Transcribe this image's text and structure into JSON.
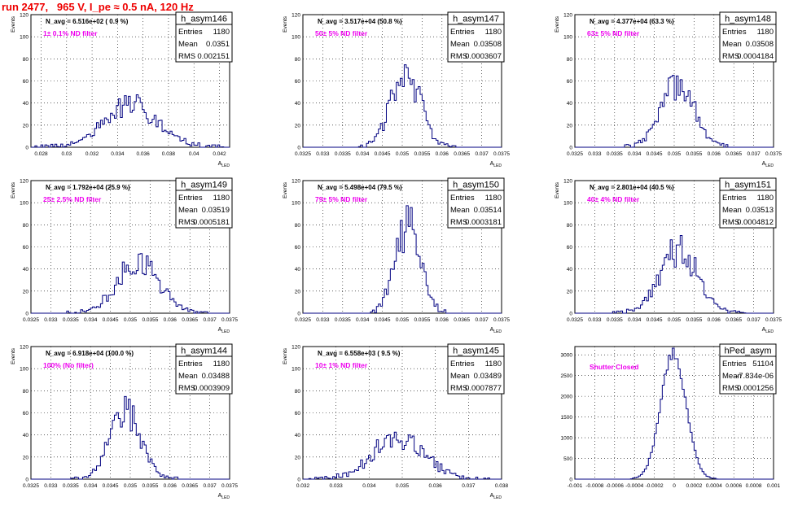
{
  "run_title": "run 2477,   965 V, I_pe ≈ 0.5 nA, 120 Hz",
  "colors": {
    "line": "#000080",
    "title": "#ee0000",
    "label": "#ee00ee",
    "frame": "#000000",
    "grid": "#000000"
  },
  "chart_data": [
    {
      "type": "bar",
      "name": "h_asym146",
      "ylabel": "Events",
      "xlabel": "A_{LED}",
      "xlim": [
        0.0272,
        0.0428
      ],
      "ylim": [
        0,
        120
      ],
      "xticks": [
        "0.028",
        "0.03",
        "0.032",
        "0.034",
        "0.036",
        "0.038",
        "0.04",
        "0.042"
      ],
      "xtick_values": [
        0.028,
        0.03,
        0.032,
        0.034,
        0.036,
        0.038,
        0.04,
        0.042
      ],
      "yticks": [
        0,
        20,
        40,
        60,
        80,
        100,
        120
      ],
      "header": "N_avg = 6.516e+02 ( 0.9 %)",
      "filter_label": "1± 0.1% ND filter",
      "stats": {
        "entries": "1180",
        "mean": "0.0351",
        "rms": "0.002151"
      },
      "mean": 0.0351,
      "sigma": 0.002151,
      "peak": 38
    },
    {
      "type": "bar",
      "name": "h_asym147",
      "ylabel": "Events",
      "xlabel": "A_{LED}",
      "xlim": [
        0.0325,
        0.0375
      ],
      "ylim": [
        0,
        120
      ],
      "xticks": [
        "0.0325",
        "0.033",
        "0.0335",
        "0.034",
        "0.0345",
        "0.035",
        "0.0355",
        "0.036",
        "0.0365",
        "0.037",
        "0.0375"
      ],
      "xtick_values": [
        0.0325,
        0.033,
        0.0335,
        0.034,
        0.0345,
        0.035,
        0.0355,
        0.036,
        0.0365,
        0.037,
        0.0375
      ],
      "yticks": [
        0,
        20,
        40,
        60,
        80,
        100,
        120
      ],
      "header": "N_avg = 3.517e+04 (50.8 %)",
      "filter_label": "50± 5% ND filter",
      "stats": {
        "entries": "1180",
        "mean": "0.03508",
        "rms": "0.0003607"
      },
      "mean": 0.03508,
      "sigma": 0.0003607,
      "peak": 72
    },
    {
      "type": "bar",
      "name": "h_asym148",
      "ylabel": "Events",
      "xlabel": "A_{LED}",
      "xlim": [
        0.0325,
        0.0375
      ],
      "ylim": [
        0,
        120
      ],
      "xticks": [
        "0.0325",
        "0.033",
        "0.0335",
        "0.034",
        "0.0345",
        "0.035",
        "0.0355",
        "0.036",
        "0.0365",
        "0.037",
        "0.0375"
      ],
      "xtick_values": [
        0.0325,
        0.033,
        0.0335,
        0.034,
        0.0345,
        0.035,
        0.0355,
        0.036,
        0.0365,
        0.037,
        0.0375
      ],
      "yticks": [
        0,
        20,
        40,
        60,
        80,
        100,
        120
      ],
      "header": "N_avg = 4.377e+04 (63.3 %)",
      "filter_label": "63± 5% ND filter",
      "stats": {
        "entries": "1180",
        "mean": "0.03508",
        "rms": "0.0004184"
      },
      "mean": 0.03508,
      "sigma": 0.0004184,
      "peak": 55
    },
    {
      "type": "bar",
      "name": "h_asym149",
      "ylabel": "Events",
      "xlabel": "A_{LED}",
      "xlim": [
        0.0325,
        0.0375
      ],
      "ylim": [
        0,
        120
      ],
      "xticks": [
        "0.0325",
        "0.033",
        "0.0335",
        "0.034",
        "0.0345",
        "0.035",
        "0.0355",
        "0.036",
        "0.0365",
        "0.037",
        "0.0375"
      ],
      "xtick_values": [
        0.0325,
        0.033,
        0.0335,
        0.034,
        0.0345,
        0.035,
        0.0355,
        0.036,
        0.0365,
        0.037,
        0.0375
      ],
      "yticks": [
        0,
        20,
        40,
        60,
        80,
        100,
        120
      ],
      "header": "N_avg = 1.792e+04 (25.9 %)",
      "filter_label": "25± 2.5% ND filter",
      "stats": {
        "entries": "1180",
        "mean": "0.03519",
        "rms": "0.0005181"
      },
      "mean": 0.03519,
      "sigma": 0.0005181,
      "peak": 46
    },
    {
      "type": "bar",
      "name": "h_asym150",
      "ylabel": "Events",
      "xlabel": "A_{LED}",
      "xlim": [
        0.0325,
        0.0375
      ],
      "ylim": [
        0,
        120
      ],
      "xticks": [
        "0.0325",
        "0.033",
        "0.0335",
        "0.034",
        "0.0345",
        "0.035",
        "0.0355",
        "0.036",
        "0.0365",
        "0.037",
        "0.0375"
      ],
      "xtick_values": [
        0.0325,
        0.033,
        0.0335,
        0.034,
        0.0345,
        0.035,
        0.0355,
        0.036,
        0.0365,
        0.037,
        0.0375
      ],
      "yticks": [
        0,
        20,
        40,
        60,
        80,
        100,
        120
      ],
      "header": "N_avg = 5.498e+04 (79.5 %)",
      "filter_label": "79± 5% ND filter",
      "stats": {
        "entries": "1180",
        "mean": "0.03514",
        "rms": "0.0003181"
      },
      "mean": 0.03514,
      "sigma": 0.0003181,
      "peak": 78
    },
    {
      "type": "bar",
      "name": "h_asym151",
      "ylabel": "Events",
      "xlabel": "A_{LED}",
      "xlim": [
        0.0325,
        0.0375
      ],
      "ylim": [
        0,
        120
      ],
      "xticks": [
        "0.0325",
        "0.033",
        "0.0335",
        "0.034",
        "0.0345",
        "0.035",
        "0.0355",
        "0.036",
        "0.0365",
        "0.037",
        "0.0375"
      ],
      "xtick_values": [
        0.0325,
        0.033,
        0.0335,
        0.034,
        0.0345,
        0.035,
        0.0355,
        0.036,
        0.0365,
        0.037,
        0.0375
      ],
      "yticks": [
        0,
        20,
        40,
        60,
        80,
        100,
        120
      ],
      "header": "N_avg = 2.801e+04 (40.5 %)",
      "filter_label": "40± 4% ND filter",
      "stats": {
        "entries": "1180",
        "mean": "0.03513",
        "rms": "0.0004812"
      },
      "mean": 0.03513,
      "sigma": 0.0004812,
      "peak": 56
    },
    {
      "type": "bar",
      "name": "h_asym144",
      "ylabel": "Events",
      "xlabel": "A_{LED}",
      "xlim": [
        0.0325,
        0.0375
      ],
      "ylim": [
        0,
        120
      ],
      "xticks": [
        "0.0325",
        "0.033",
        "0.0335",
        "0.034",
        "0.0345",
        "0.035",
        "0.0355",
        "0.036",
        "0.0365",
        "0.037",
        "0.0375"
      ],
      "xtick_values": [
        0.0325,
        0.033,
        0.0335,
        0.034,
        0.0345,
        0.035,
        0.0355,
        0.036,
        0.0365,
        0.037,
        0.0375
      ],
      "yticks": [
        0,
        20,
        40,
        60,
        80,
        100,
        120
      ],
      "header": "N_avg = 6.918e+04 (100.0 %)",
      "filter_label": "100% (No filter)",
      "stats": {
        "entries": "1180",
        "mean": "0.03488",
        "rms": "0.0003909"
      },
      "mean": 0.03488,
      "sigma": 0.0003909,
      "peak": 60
    },
    {
      "type": "bar",
      "name": "h_asym145",
      "ylabel": "Events",
      "xlabel": "A_{LED}",
      "xlim": [
        0.032,
        0.038
      ],
      "ylim": [
        0,
        120
      ],
      "xticks": [
        "0.032",
        "0.033",
        "0.034",
        "0.035",
        "0.036",
        "0.037",
        "0.038"
      ],
      "xtick_values": [
        0.032,
        0.033,
        0.034,
        0.035,
        0.036,
        0.037,
        0.038
      ],
      "yticks": [
        0,
        20,
        40,
        60,
        80,
        100,
        120
      ],
      "header": "N_avg = 6.558e+03 ( 9.5 %)",
      "filter_label": "10± 1% ND filter",
      "stats": {
        "entries": "1180",
        "mean": "0.03489",
        "rms": "0.0007877"
      },
      "mean": 0.03489,
      "sigma": 0.0007877,
      "peak": 38
    },
    {
      "type": "bar",
      "name": "hPed_asym",
      "ylabel": "",
      "xlabel": "",
      "xlim": [
        -0.001,
        0.001
      ],
      "ylim": [
        0,
        3200
      ],
      "xticks": [
        "-0.001",
        "-0.0008",
        "-0.0006",
        "-0.0004",
        "-0.0002",
        "0",
        "0.0002",
        "0.0004",
        "0.0006",
        "0.0008",
        "0.001"
      ],
      "xtick_values": [
        -0.001,
        -0.0008,
        -0.0006,
        -0.0004,
        -0.0002,
        0,
        0.0002,
        0.0004,
        0.0006,
        0.0008,
        0.001
      ],
      "yticks": [
        0,
        500,
        1000,
        1500,
        2000,
        2500,
        3000
      ],
      "header": "",
      "filter_label": "Shutter Closed",
      "stats": {
        "entries": "51104",
        "mean": "-7.834e-06",
        "rms": "0.0001256"
      },
      "mean": -7.834e-06,
      "sigma": 0.0001256,
      "peak": 3050
    }
  ],
  "stat_labels": {
    "entries": "Entries",
    "mean": "Mean",
    "rms": "RMS"
  }
}
